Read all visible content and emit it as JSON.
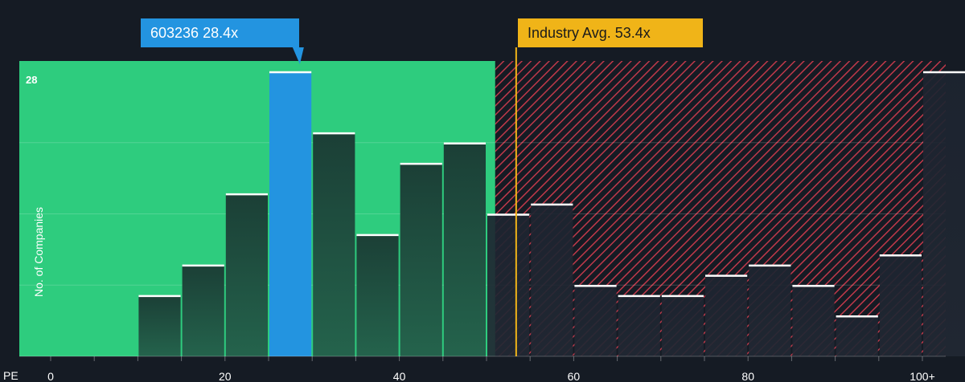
{
  "company_callout": {
    "label": "603236 28.4x",
    "value": 28.4
  },
  "industry_callout": {
    "label": "Industry Avg. 53.4x",
    "value": 53.4
  },
  "colors": {
    "background": "#151b24",
    "good_zone": "#2ecc7e",
    "bad_zone_stripe": "#c0394a",
    "bar_fill": "#1d4a3d",
    "bar_fill_bad": "#1e2530",
    "highlight_bar": "#2394e0",
    "industry_line": "#f0b418"
  },
  "chart_data": {
    "type": "bar",
    "xlabel": "PE",
    "ylabel": "No. of Companies",
    "xlim": [
      0,
      102.5
    ],
    "ylim": [
      0,
      28
    ],
    "y_tick_shown": "28",
    "x_ticks": [
      {
        "value": 0,
        "label": "0"
      },
      {
        "value": 20,
        "label": "20"
      },
      {
        "value": 40,
        "label": "40"
      },
      {
        "value": 60,
        "label": "60"
      },
      {
        "value": 80,
        "label": "80"
      },
      {
        "value": 100,
        "label": "100+"
      }
    ],
    "bin_width": 5,
    "bins": [
      {
        "start": 10,
        "count": 6
      },
      {
        "start": 15,
        "count": 9
      },
      {
        "start": 20,
        "count": 16
      },
      {
        "start": 25,
        "count": 28,
        "highlight": true
      },
      {
        "start": 30,
        "count": 22
      },
      {
        "start": 35,
        "count": 12
      },
      {
        "start": 40,
        "count": 19
      },
      {
        "start": 45,
        "count": 21
      },
      {
        "start": 50,
        "count": 14
      },
      {
        "start": 55,
        "count": 15
      },
      {
        "start": 60,
        "count": 7
      },
      {
        "start": 65,
        "count": 6
      },
      {
        "start": 70,
        "count": 6
      },
      {
        "start": 75,
        "count": 8
      },
      {
        "start": 80,
        "count": 9
      },
      {
        "start": 85,
        "count": 7
      },
      {
        "start": 90,
        "count": 4
      },
      {
        "start": 95,
        "count": 10
      },
      {
        "start": 100,
        "count": 28
      }
    ],
    "good_zone_max_pe": 51,
    "company_pe": 28.4,
    "industry_avg_pe": 53.4,
    "grid": true
  }
}
